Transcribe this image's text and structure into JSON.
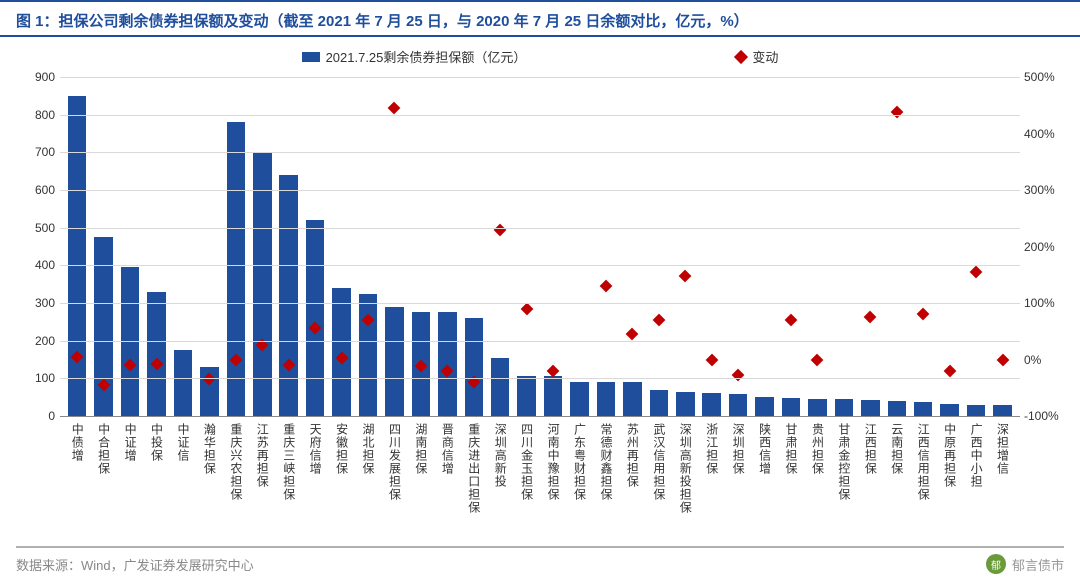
{
  "title": "图 1：担保公司剩余债券担保额及变动（截至 2021 年 7 月 25 日，与 2020 年 7 月 25 日余额对比，亿元，%）",
  "legend": {
    "bar_label": "2021.7.25剩余债券担保额（亿元）",
    "marker_label": "变动"
  },
  "chart": {
    "type": "bar+scatter",
    "background_color": "#ffffff",
    "grid_color": "#d9d9d9",
    "bar_color": "#1f4e9c",
    "marker_color": "#c00000",
    "title_color": "#1f4e9c",
    "axis_text_color": "#333333",
    "title_fontsize": 15,
    "label_fontsize": 12,
    "bar_width": 0.7,
    "y_left": {
      "min": 0,
      "max": 900,
      "step": 100,
      "unit": "亿元"
    },
    "y_right": {
      "min": -100,
      "max": 500,
      "step": 100,
      "unit": "%"
    },
    "categories": [
      "中债增",
      "中合担保",
      "中证增",
      "中投保",
      "中证信",
      "瀚华担保",
      "重庆兴农担保",
      "江苏再担保",
      "重庆三峡担保",
      "天府信增",
      "安徽担保",
      "湖北担保",
      "四川发展担保",
      "湖南担保",
      "晋商信增",
      "重庆进出口担保",
      "深圳高新投",
      "四川金玉担保",
      "河南中豫担保",
      "广东粤财担保",
      "常德财鑫担保",
      "苏州再担保",
      "武汉信用担保",
      "深圳高新投担保",
      "浙江担保",
      "深圳担保",
      "陕西信增",
      "甘肃担保",
      "贵州担保",
      "甘肃金控担保",
      "江西担保",
      "云南担保",
      "江西信用担保",
      "中原再担保",
      "广西中小担",
      "深担增信"
    ],
    "bar_values": [
      850,
      475,
      395,
      330,
      175,
      130,
      780,
      700,
      640,
      520,
      340,
      325,
      290,
      275,
      275,
      260,
      155,
      105,
      105,
      90,
      90,
      90,
      70,
      65,
      60,
      58,
      50,
      48,
      45,
      45,
      42,
      40,
      38,
      32,
      30,
      28
    ],
    "change_values_pct": [
      5,
      -45,
      -10,
      -8,
      null,
      -35,
      0,
      25,
      -10,
      55,
      2,
      70,
      445,
      -12,
      -20,
      -40,
      230,
      90,
      -20,
      null,
      130,
      45,
      70,
      148,
      0,
      -28,
      null,
      70,
      0,
      null,
      75,
      438,
      80,
      -20,
      155,
      0
    ]
  },
  "footer": {
    "source": "数据来源：Wind，广发证券发展研究中心",
    "watermark": "郁言债市"
  }
}
